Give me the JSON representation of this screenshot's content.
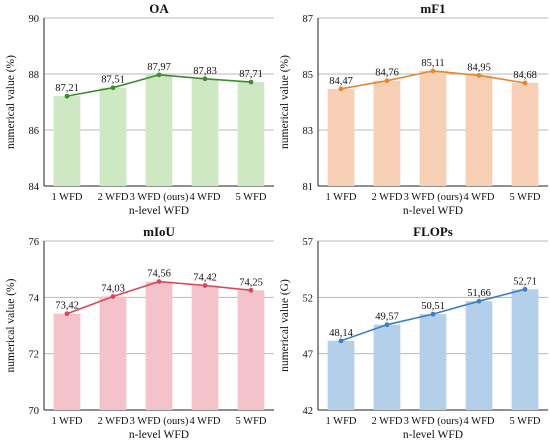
{
  "chart_data": [
    {
      "type": "bar",
      "title": "OA",
      "xlabel": "n-level WFD",
      "ylabel": "numerical value (%)",
      "categories": [
        "1 WFD",
        "2 WFD",
        "3 WFD (ours)",
        "4 WFD",
        "5 WFD"
      ],
      "values": [
        87.21,
        87.51,
        87.97,
        87.83,
        87.71
      ],
      "labels": [
        "87,21",
        "87,51",
        "87,97",
        "87,83",
        "87,71"
      ],
      "ylim": [
        84,
        90
      ],
      "yticks": [
        "84",
        "86",
        "88",
        "90"
      ],
      "bar_color": "#cfe8c4",
      "line_color": "#3e8d2c",
      "grid": true
    },
    {
      "type": "bar",
      "title": "mF1",
      "xlabel": "n-level WFD",
      "ylabel": "numerical value (%)",
      "categories": [
        "1 WFD",
        "2 WFD",
        "3 WFD (ours)",
        "4 WFD",
        "5 WFD"
      ],
      "values": [
        84.47,
        84.76,
        85.11,
        84.95,
        84.68
      ],
      "labels": [
        "84,47",
        "84,76",
        "85,11",
        "84,95",
        "84,68"
      ],
      "ylim": [
        81,
        87
      ],
      "yticks": [
        "81",
        "83",
        "85",
        "87"
      ],
      "bar_color": "#f6cfb4",
      "line_color": "#e8862f",
      "grid": true
    },
    {
      "type": "bar",
      "title": "mIoU",
      "xlabel": "n-level WFD",
      "ylabel": "numerical value (%)",
      "categories": [
        "1 WFD",
        "2 WFD",
        "3 WFD (ours)",
        "4 WFD",
        "5 WFD"
      ],
      "values": [
        73.42,
        74.03,
        74.56,
        74.42,
        74.25
      ],
      "labels": [
        "73,42",
        "74,03",
        "74,56",
        "74,42",
        "74,25"
      ],
      "ylim": [
        70,
        76
      ],
      "yticks": [
        "70",
        "72",
        "74",
        "76"
      ],
      "bar_color": "#f4c2cb",
      "line_color": "#d9485a",
      "grid": true
    },
    {
      "type": "bar",
      "title": "FLOPs",
      "xlabel": "n-level WFD",
      "ylabel": "numerical value (G)",
      "categories": [
        "1 WFD",
        "2 WFD",
        "3 WFD (ours)",
        "4 WFD",
        "5 WFD"
      ],
      "values": [
        48.14,
        49.57,
        50.51,
        51.66,
        52.71
      ],
      "labels": [
        "48,14",
        "49,57",
        "50,51",
        "51,66",
        "52,71"
      ],
      "ylim": [
        42,
        57
      ],
      "yticks": [
        "42",
        "47",
        "52",
        "57"
      ],
      "bar_color": "#b3cfe9",
      "line_color": "#3a7fc4",
      "grid": true
    }
  ]
}
